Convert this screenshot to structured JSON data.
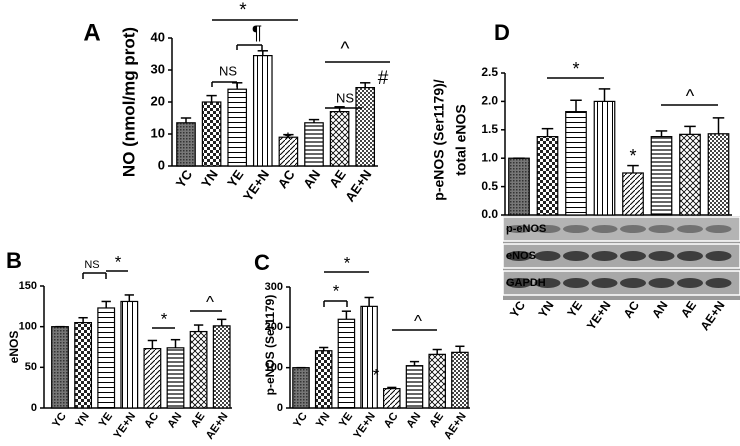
{
  "chart_data": [
    {
      "type": "bar",
      "panel_label": "A",
      "y_label": [
        "NO (nmol/mg prot)"
      ],
      "color": "#000000",
      "categories": [
        "YC",
        "YN",
        "YE",
        "YE+N",
        "AC",
        "AN",
        "AE",
        "AE+N"
      ],
      "values": [
        13.5,
        20,
        24,
        34.5,
        9,
        13.5,
        17,
        24.5
      ],
      "errors": [
        1.5,
        2,
        2,
        1.5,
        0.8,
        1,
        1.5,
        1.5
      ],
      "ylim": [
        0,
        40
      ],
      "yticks": [
        0,
        10,
        20,
        30,
        40
      ],
      "annotations": [
        "*",
        "¶",
        "NS",
        "NS",
        "^",
        "#",
        "*"
      ]
    },
    {
      "type": "bar",
      "panel_label": "B",
      "y_label": [
        "eNOS"
      ],
      "color": "#000000",
      "categories": [
        "YC",
        "YN",
        "YE",
        "YE+N",
        "AC",
        "AN",
        "AE",
        "AE+N"
      ],
      "values": [
        100,
        105,
        123,
        131,
        73,
        74,
        94,
        101
      ],
      "errors": [
        0,
        6,
        8,
        8,
        10,
        10,
        8,
        8
      ],
      "ylim": [
        0,
        150
      ],
      "yticks": [
        0,
        50,
        100,
        150
      ],
      "annotations": [
        "NS",
        "*",
        "*",
        "^"
      ]
    },
    {
      "type": "bar",
      "panel_label": "C",
      "y_label": [
        "p-eNOS  (Ser1179)"
      ],
      "color": "#000000",
      "categories": [
        "YC",
        "YN",
        "YE",
        "YE+N",
        "AC",
        "AN",
        "AE",
        "AE+N"
      ],
      "values": [
        100,
        142,
        220,
        252,
        48,
        105,
        133,
        138
      ],
      "errors": [
        0,
        8,
        20,
        22,
        3,
        10,
        12,
        15
      ],
      "ylim": [
        0,
        300
      ],
      "yticks": [
        0,
        100,
        200,
        300
      ],
      "annotations": [
        "*",
        "*",
        "*",
        "^"
      ]
    },
    {
      "type": "bar",
      "panel_label": "D",
      "y_label": [
        "p-eNOS  (Ser1179)/",
        "total eNOS"
      ],
      "color": "#000000",
      "categories": [
        "YC",
        "YN",
        "YE",
        "YE+N",
        "AC",
        "AN",
        "AE",
        "AE+N"
      ],
      "values": [
        1.0,
        1.38,
        1.82,
        2.0,
        0.74,
        1.38,
        1.42,
        1.43
      ],
      "errors": [
        0,
        0.14,
        0.2,
        0.22,
        0.13,
        0.1,
        0.14,
        0.28
      ],
      "ylim": [
        0,
        2.5
      ],
      "yticks": [
        {
          "value": 0,
          "label": "0.0"
        },
        {
          "value": 0.5,
          "label": "0.5"
        },
        {
          "value": 1,
          "label": "1.0"
        },
        {
          "value": 1.5,
          "label": "1.5"
        },
        {
          "value": 2,
          "label": "2.0"
        },
        {
          "value": 2.5,
          "label": "2.5"
        }
      ],
      "annotations": [
        "*",
        "*",
        "^"
      ],
      "blot_labels": [
        "p-eNOS",
        "eNOS",
        "GAPDH"
      ]
    }
  ]
}
